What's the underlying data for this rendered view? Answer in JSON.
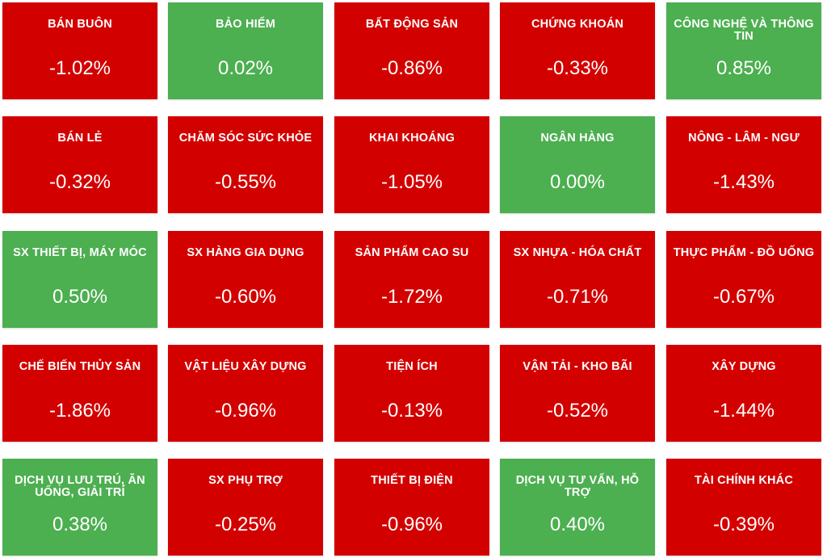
{
  "colors": {
    "down": "#d30000",
    "up": "#4caf50",
    "text": "#ffffff"
  },
  "sectors": [
    {
      "name": "BÁN BUÔN",
      "change": "-1.02%",
      "trend": "down"
    },
    {
      "name": "BẢO HIỂM",
      "change": "0.02%",
      "trend": "up"
    },
    {
      "name": "BẤT ĐỘNG SẢN",
      "change": "-0.86%",
      "trend": "down"
    },
    {
      "name": "CHỨNG KHOÁN",
      "change": "-0.33%",
      "trend": "down"
    },
    {
      "name": "CÔNG NGHỆ VÀ THÔNG TIN",
      "change": "0.85%",
      "trend": "up"
    },
    {
      "name": "BÁN LẺ",
      "change": "-0.32%",
      "trend": "down"
    },
    {
      "name": "CHĂM SÓC SỨC KHỎE",
      "change": "-0.55%",
      "trend": "down"
    },
    {
      "name": "KHAI KHOÁNG",
      "change": "-1.05%",
      "trend": "down"
    },
    {
      "name": "NGÂN HÀNG",
      "change": "0.00%",
      "trend": "up"
    },
    {
      "name": "NÔNG - LÂM - NGƯ",
      "change": "-1.43%",
      "trend": "down"
    },
    {
      "name": "SX THIẾT BỊ, MÁY MÓC",
      "change": "0.50%",
      "trend": "up"
    },
    {
      "name": "SX HÀNG GIA DỤNG",
      "change": "-0.60%",
      "trend": "down"
    },
    {
      "name": "SẢN PHẨM CAO SU",
      "change": "-1.72%",
      "trend": "down"
    },
    {
      "name": "SX NHỰA - HÓA CHẤT",
      "change": "-0.71%",
      "trend": "down"
    },
    {
      "name": "THỰC PHẨM - ĐỒ UỐNG",
      "change": "-0.67%",
      "trend": "down"
    },
    {
      "name": "CHẾ BIẾN THỦY SẢN",
      "change": "-1.86%",
      "trend": "down"
    },
    {
      "name": "VẬT LIỆU XÂY DỰNG",
      "change": "-0.96%",
      "trend": "down"
    },
    {
      "name": "TIỆN ÍCH",
      "change": "-0.13%",
      "trend": "down"
    },
    {
      "name": "VẬN TẢI - KHO BÃI",
      "change": "-0.52%",
      "trend": "down"
    },
    {
      "name": "XÂY DỰNG",
      "change": "-1.44%",
      "trend": "down"
    },
    {
      "name": "DỊCH VỤ LƯU TRÚ, ĂN UỐNG, GIẢI TRÍ",
      "change": "0.38%",
      "trend": "up"
    },
    {
      "name": "SX PHỤ TRỢ",
      "change": "-0.25%",
      "trend": "down"
    },
    {
      "name": "THIẾT BỊ ĐIỆN",
      "change": "-0.96%",
      "trend": "down"
    },
    {
      "name": "DỊCH VỤ TƯ VẤN, HỖ TRỢ",
      "change": "0.40%",
      "trend": "up"
    },
    {
      "name": "TÀI CHÍNH KHÁC",
      "change": "-0.39%",
      "trend": "down"
    }
  ]
}
